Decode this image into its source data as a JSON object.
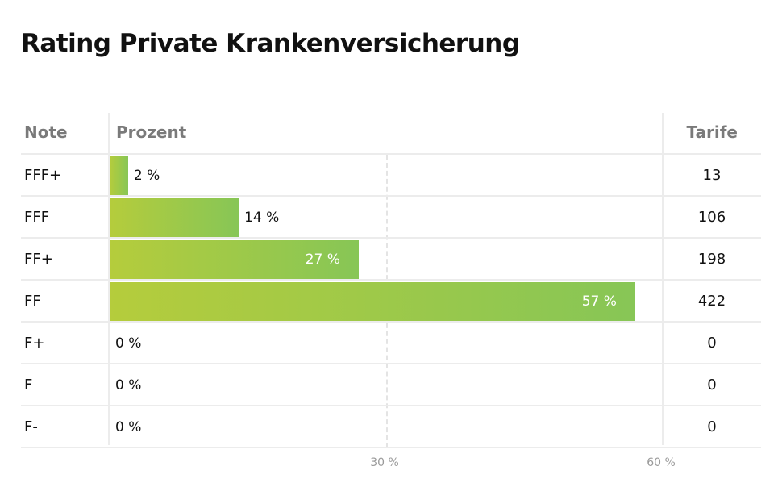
{
  "title": "Rating Private Krankenversicherung",
  "headers": {
    "note": "Note",
    "percent": "Prozent",
    "tarife": "Tarife"
  },
  "chart_data": {
    "type": "bar",
    "orientation": "horizontal",
    "title": "Rating Private Krankenversicherung",
    "categories": [
      "FFF+",
      "FFF",
      "FF+",
      "FF",
      "F+",
      "F",
      "F-"
    ],
    "values": [
      2,
      14,
      27,
      57,
      0,
      0,
      0
    ],
    "value_labels": [
      "2 %",
      "14 %",
      "27 %",
      "57 %",
      "0 %",
      "0 %",
      "0 %"
    ],
    "tarife": [
      13,
      106,
      198,
      422,
      0,
      0,
      0
    ],
    "xlim": [
      0,
      60
    ],
    "ticks": [
      30,
      60
    ],
    "tick_labels": [
      "30 %",
      "60 %"
    ],
    "colors": {
      "bar_start": "#b5cc3c",
      "bar_end": "#87c656"
    }
  }
}
